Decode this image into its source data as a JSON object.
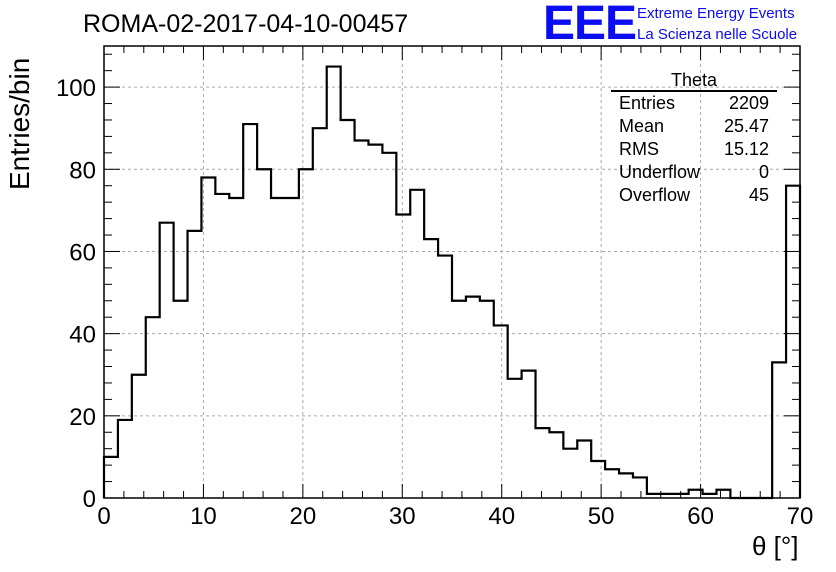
{
  "header": {
    "run_title": "ROMA-02-2017-04-10-00457",
    "logo_text": "EEE",
    "logo_line1": "Extreme Energy Events",
    "logo_line2": "La Scienza nelle Scuole"
  },
  "stats_box": {
    "name": "Theta",
    "rows": [
      {
        "label": "Entries",
        "value": "2209"
      },
      {
        "label": "Mean",
        "value": "25.47"
      },
      {
        "label": "RMS",
        "value": "15.12"
      },
      {
        "label": "Underflow",
        "value": "0"
      },
      {
        "label": "Overflow",
        "value": "45"
      }
    ]
  },
  "chart_data": {
    "type": "bar",
    "title": "ROMA-02-2017-04-10-00457",
    "xlabel": "θ [°]",
    "ylabel": "Entries/bin",
    "xlim": [
      0,
      70
    ],
    "ylim": [
      0,
      110
    ],
    "bin_width": 1.4,
    "bin_edges_start": 0,
    "values": [
      10,
      19,
      30,
      44,
      67,
      48,
      65,
      78,
      74,
      73,
      91,
      80,
      73,
      73,
      80,
      90,
      105,
      92,
      87,
      86,
      84,
      69,
      75,
      63,
      59,
      48,
      49,
      48,
      42,
      29,
      31,
      17,
      16,
      12,
      14,
      9,
      7,
      6,
      5,
      1,
      1,
      1,
      2,
      1,
      2,
      0,
      0,
      0,
      33,
      76
    ],
    "xticks": [
      "0",
      "10",
      "20",
      "30",
      "40",
      "50",
      "60",
      "70"
    ],
    "yticks": [
      "0",
      "20",
      "40",
      "60",
      "80",
      "100"
    ],
    "grid": true
  }
}
